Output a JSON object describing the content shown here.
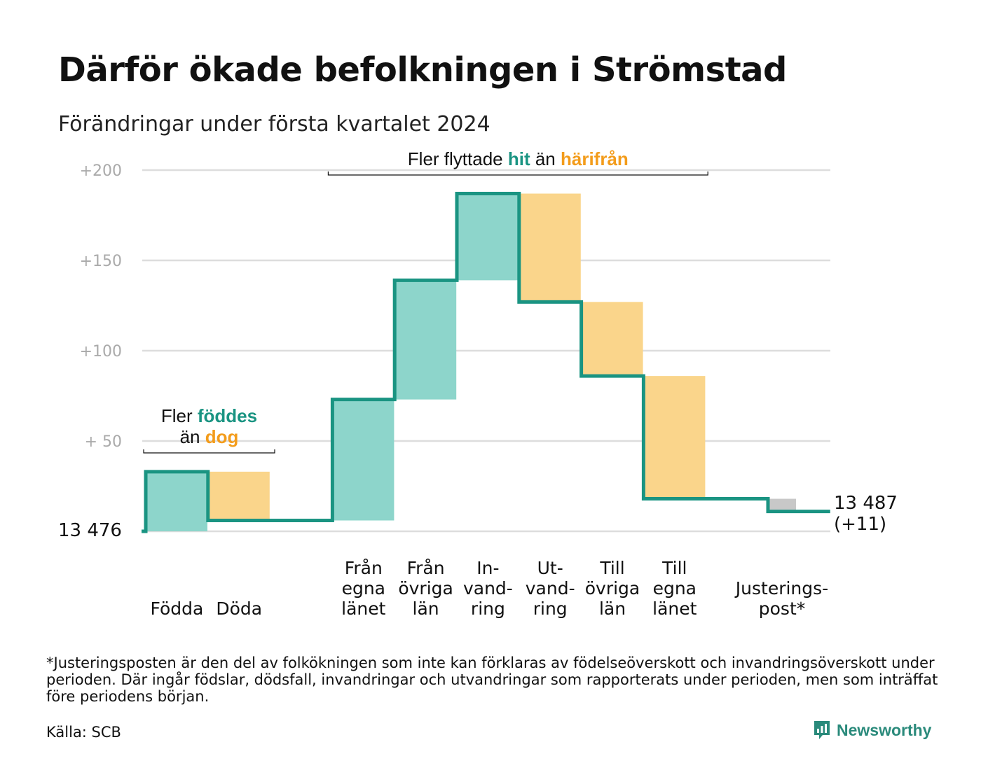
{
  "title": "Därför ökade befolkningen i Strömstad",
  "subtitle": "Förändringar under första kvartalet 2024",
  "footnote": "*Justeringsposten är den del av folkökningen som inte kan förklaras av födelseöverskott och invandringsöverskott under perioden. Där ingår födslar, dödsfall, invandringar och utvandringar som rapporterats under perioden, men som inträffat före periodens början.",
  "source": "Källa: SCB",
  "brand": {
    "name": "Newsworthy",
    "icon": "newsworthy-logo-icon"
  },
  "colors": {
    "in": "#8dd5cb",
    "out": "#fad58b",
    "adjust": "#c8c8c8",
    "line": "#1a9482",
    "orange_text": "#f39c1b",
    "teal_text": "#1a9482",
    "axis_text": "#aaaaaa",
    "grid": "#dddddd"
  },
  "chart_data": {
    "type": "waterfall",
    "start_label": "13  476",
    "end_label": [
      "13 487",
      "(+11)"
    ],
    "ylim": [
      0,
      200
    ],
    "yticks": [
      {
        "value": 50,
        "label": "+  50"
      },
      {
        "value": 100,
        "label": "+100"
      },
      {
        "value": 150,
        "label": "+150"
      },
      {
        "value": 200,
        "label": "+200"
      }
    ],
    "steps": [
      {
        "label": [
          "Födda"
        ],
        "from": 0,
        "to": 33,
        "kind": "in"
      },
      {
        "label": [
          "Döda"
        ],
        "from": 33,
        "to": 6,
        "kind": "out"
      },
      {
        "label": [],
        "from": 6,
        "to": 6,
        "kind": "gap"
      },
      {
        "label": [
          "Från",
          "egna",
          "länet"
        ],
        "from": 6,
        "to": 73,
        "kind": "in"
      },
      {
        "label": [
          "Från",
          "övriga",
          "län"
        ],
        "from": 73,
        "to": 139,
        "kind": "in"
      },
      {
        "label": [
          "In-",
          "vand-",
          "ring"
        ],
        "from": 139,
        "to": 187,
        "kind": "in"
      },
      {
        "label": [
          "Ut-",
          "vand-",
          "ring"
        ],
        "from": 187,
        "to": 127,
        "kind": "out"
      },
      {
        "label": [
          "Till",
          "övriga",
          "län"
        ],
        "from": 127,
        "to": 86,
        "kind": "out"
      },
      {
        "label": [
          "Till",
          "egna",
          "länet"
        ],
        "from": 86,
        "to": 18,
        "kind": "out"
      },
      {
        "label": [],
        "from": 18,
        "to": 18,
        "kind": "gap"
      },
      {
        "label": [
          "Justerings-",
          "post*"
        ],
        "from": 18,
        "to": 11,
        "kind": "adjust"
      }
    ],
    "annotations": [
      {
        "id": "births",
        "lines": [
          [
            [
              "Fler ",
              "plain"
            ],
            [
              "föddes",
              "teal"
            ]
          ],
          [
            [
              "än ",
              "plain"
            ],
            [
              "dog",
              "orange"
            ]
          ]
        ],
        "span": [
          0,
          1
        ]
      },
      {
        "id": "migration",
        "lines": [
          [
            [
              "Fler flyttade ",
              "plain"
            ],
            [
              "hit",
              "teal"
            ],
            [
              " än ",
              "plain"
            ],
            [
              "härifrån",
              "orange"
            ]
          ]
        ],
        "span": [
          3,
          8
        ]
      }
    ]
  }
}
